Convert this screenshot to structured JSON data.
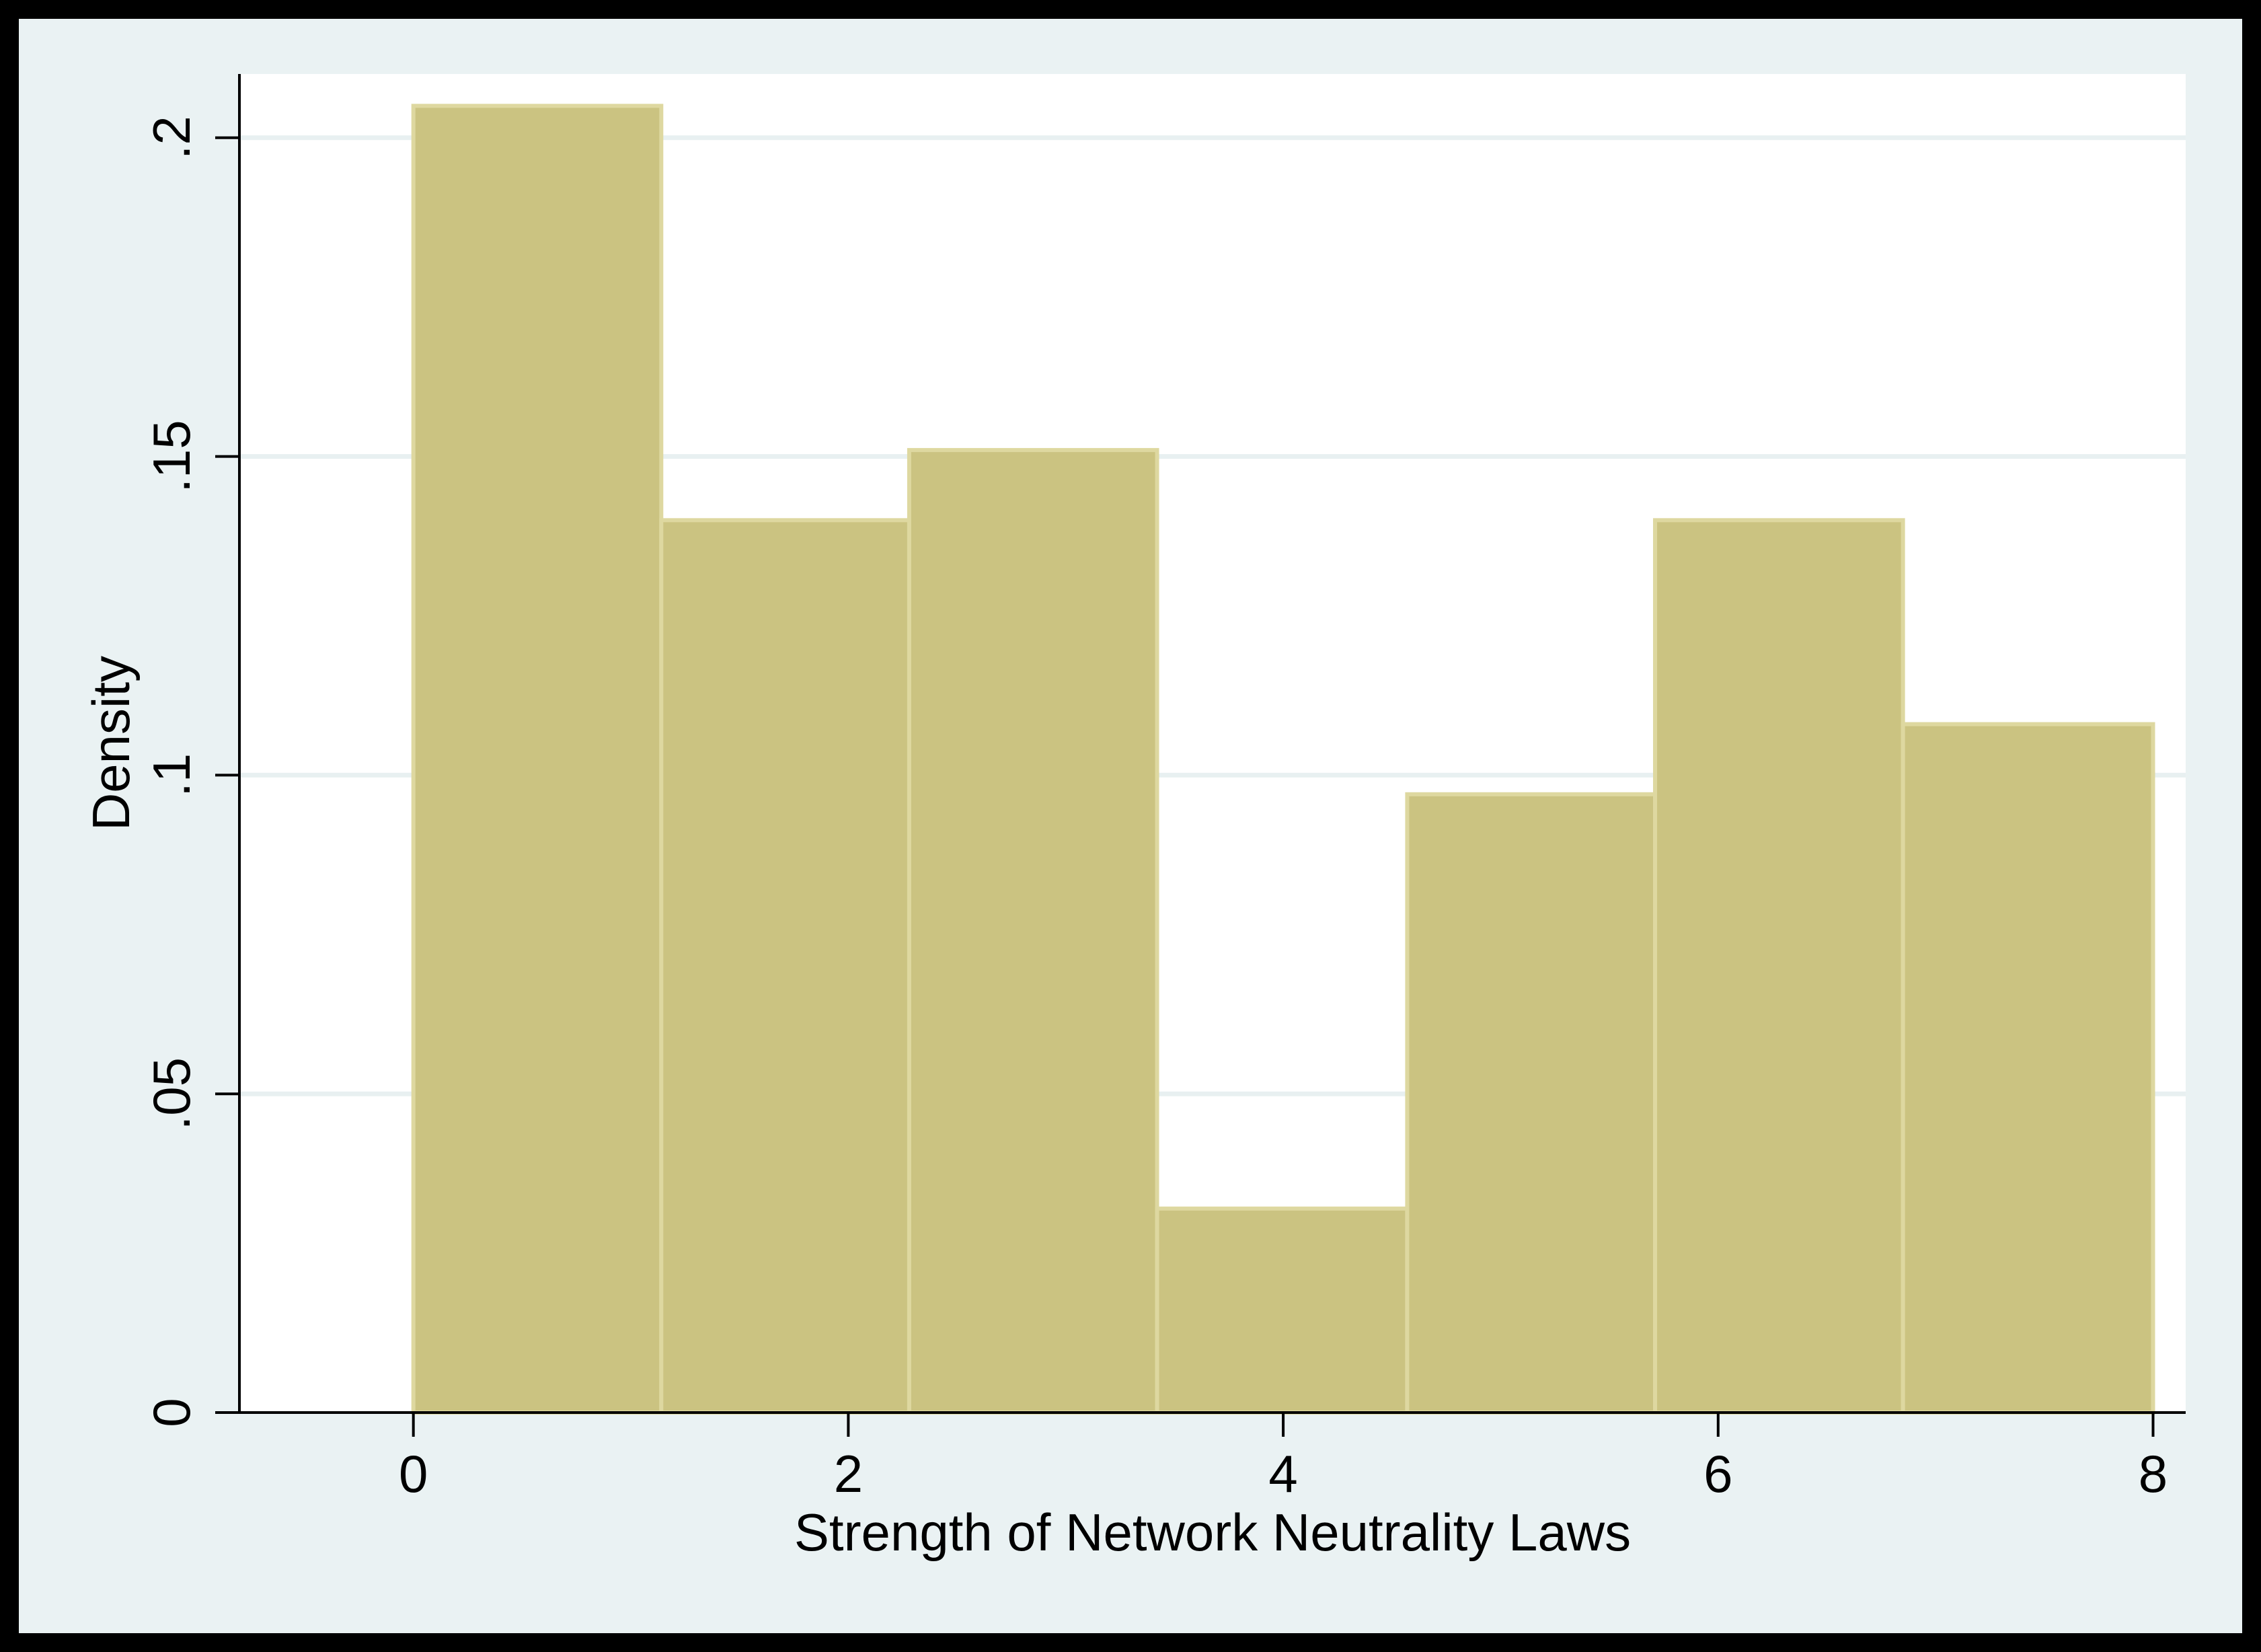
{
  "chart_data": {
    "type": "bar",
    "subtype": "histogram",
    "xlabel": "Strength of Network Neutrality Laws",
    "ylabel": "Density",
    "xlim": [
      -0.8,
      8.15
    ],
    "ylim": [
      0,
      0.21
    ],
    "bins": [
      {
        "start": 0.0,
        "end": 1.14,
        "value": 0.205
      },
      {
        "start": 1.14,
        "end": 2.28,
        "value": 0.14
      },
      {
        "start": 2.28,
        "end": 3.42,
        "value": 0.151
      },
      {
        "start": 3.42,
        "end": 4.57,
        "value": 0.032
      },
      {
        "start": 4.57,
        "end": 5.71,
        "value": 0.097
      },
      {
        "start": 5.71,
        "end": 6.85,
        "value": 0.14
      },
      {
        "start": 6.85,
        "end": 8.0,
        "value": 0.108
      }
    ],
    "xticks": [
      {
        "value": 0,
        "label": "0"
      },
      {
        "value": 2,
        "label": "2"
      },
      {
        "value": 4,
        "label": "4"
      },
      {
        "value": 6,
        "label": "6"
      },
      {
        "value": 8,
        "label": "8"
      }
    ],
    "yticks": [
      {
        "value": 0,
        "label": "0"
      },
      {
        "value": 0.05,
        "label": ".05"
      },
      {
        "value": 0.1,
        "label": ".1"
      },
      {
        "value": 0.15,
        "label": ".15"
      },
      {
        "value": 0.2,
        "label": ".2"
      }
    ],
    "grid": true,
    "colors": {
      "bar_fill": "#cbc381",
      "bar_edge": "#ded8a0",
      "grid": "#e8f0f1",
      "plot_bg": "#ffffff",
      "outer_bg": "#eaf2f3",
      "frame": "#000000"
    }
  }
}
